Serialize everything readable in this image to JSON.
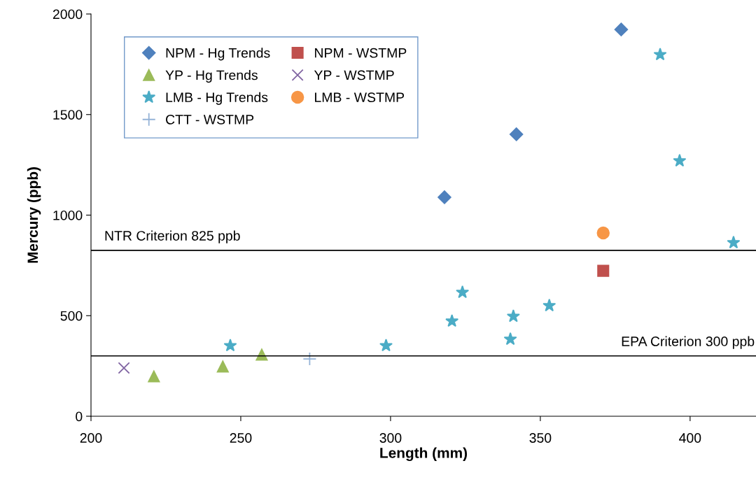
{
  "chart_data": {
    "type": "scatter",
    "xlabel": "Length (mm)",
    "ylabel": "Mercury (ppb)",
    "xlim": [
      200,
      422
    ],
    "xticks": [
      200,
      250,
      300,
      350,
      400
    ],
    "ylim": [
      0,
      2000
    ],
    "yticks": [
      0,
      500,
      1000,
      1500,
      2000
    ],
    "grid": false,
    "legend": "top left",
    "series": [
      {
        "name": "NPM - Hg Trends",
        "color": "#4f81bd",
        "marker": "diamond",
        "x": [
          318,
          342,
          377
        ],
        "values": [
          1089,
          1402,
          1923
        ]
      },
      {
        "name": "NPM - WSTMP",
        "color": "#c0504d",
        "marker": "square",
        "x": [
          371
        ],
        "values": [
          723
        ]
      },
      {
        "name": "YP - Hg Trends",
        "color": "#9bbb59",
        "marker": "triangle",
        "x": [
          221,
          244,
          257
        ],
        "values": [
          198,
          247,
          306
        ]
      },
      {
        "name": "YP - WSTMP",
        "color": "#8064a2",
        "marker": "cross",
        "x": [
          211
        ],
        "values": [
          240
        ]
      },
      {
        "name": "LMB - Hg Trends",
        "color": "#4bacc6",
        "marker": "star",
        "x": [
          246.5,
          298.5,
          320.5,
          324,
          340,
          341,
          353,
          390,
          396.5,
          414.5
        ],
        "values": [
          351,
          351,
          473,
          616,
          383,
          497,
          550,
          1798,
          1270,
          863
        ]
      },
      {
        "name": "LMB - WSTMP",
        "color": "#f79646",
        "marker": "circle",
        "x": [
          371
        ],
        "values": [
          911
        ]
      },
      {
        "name": "CTT - WSTMP",
        "color": "#95b3d7",
        "marker": "plus",
        "x": [
          273
        ],
        "values": [
          285
        ]
      }
    ],
    "ref_lines": [
      {
        "axis": "y",
        "value": 825,
        "label": "NTR Criterion 825 ppb",
        "color": "#000000"
      },
      {
        "axis": "y",
        "value": 300,
        "label": "EPA Criterion 300 ppb",
        "color": "#000000"
      }
    ]
  }
}
